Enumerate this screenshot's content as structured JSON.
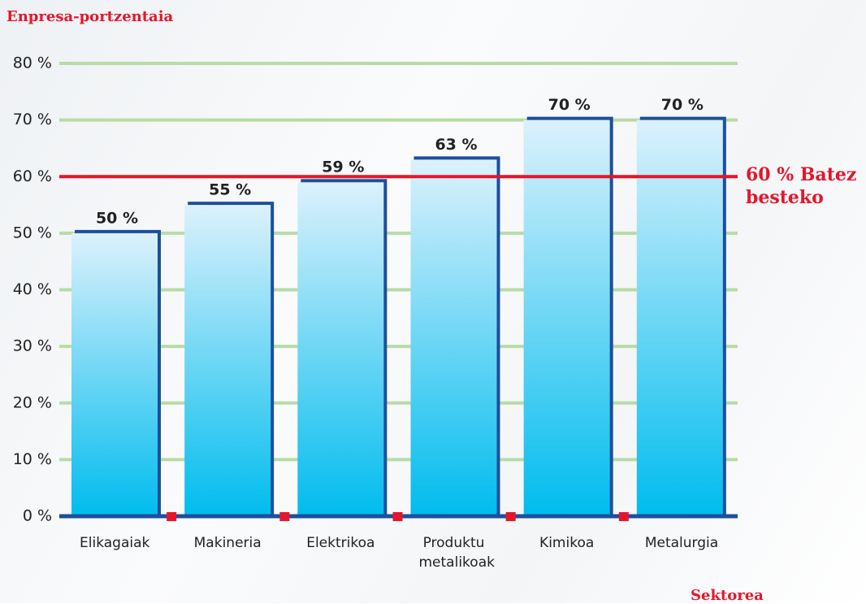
{
  "chart_data": {
    "type": "bar",
    "y_axis_label": "Enpresa-portzentaia",
    "x_axis_label": "Sektorea",
    "categories": [
      "Elikagaiak",
      "Makineria",
      "Elektrikoa",
      "Produktu metalikoak",
      "Kimikoa",
      "Metalurgia"
    ],
    "values": [
      50,
      55,
      59,
      63,
      70,
      70
    ],
    "value_labels": [
      "50 %",
      "55 %",
      "59 %",
      "63 %",
      "70 %",
      "70 %"
    ],
    "color": "#00bcee",
    "ylim": [
      0,
      80
    ],
    "yticks": [
      {
        "value": 0,
        "label": "0 %"
      },
      {
        "value": 10,
        "label": "10 %"
      },
      {
        "value": 20,
        "label": "20 %"
      },
      {
        "value": 30,
        "label": "30 %"
      },
      {
        "value": 40,
        "label": "40 %"
      },
      {
        "value": 50,
        "label": "50 %"
      },
      {
        "value": 60,
        "label": "60 %"
      },
      {
        "value": 70,
        "label": "70 %"
      },
      {
        "value": 80,
        "label": "80 %"
      }
    ],
    "grid": true,
    "reference_line": {
      "value": 60,
      "label": "60 % Batez besteko",
      "color": "#e5162b"
    }
  }
}
